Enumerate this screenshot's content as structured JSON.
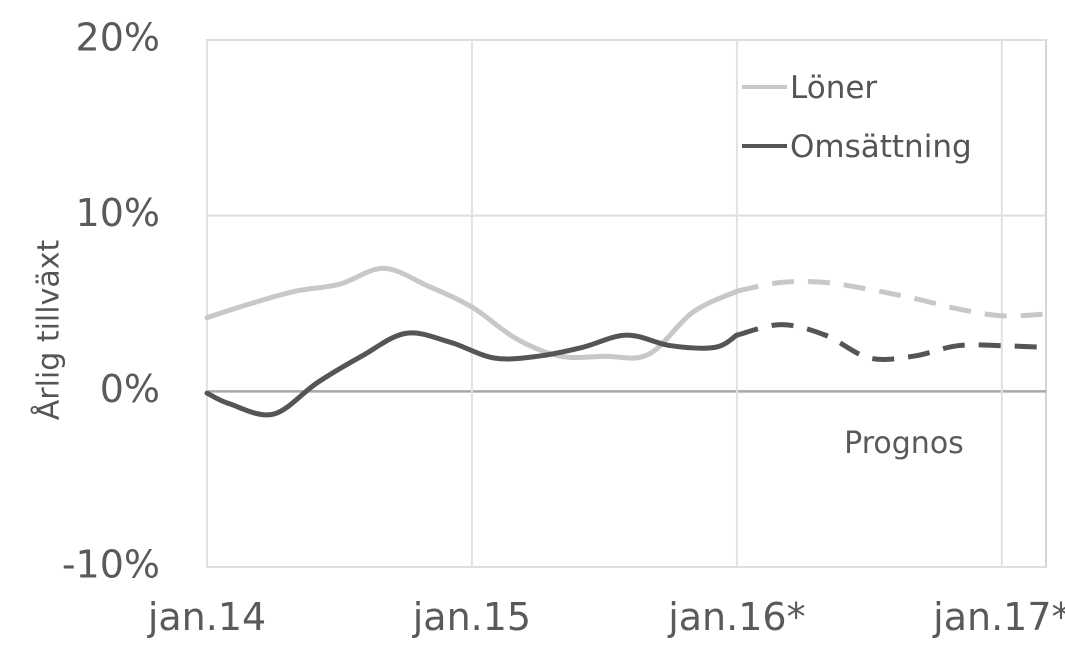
{
  "chart_data": {
    "type": "line",
    "ylabel": "Årlig tillväxt",
    "yticks": [
      {
        "value": 20,
        "label": "20%"
      },
      {
        "value": 10,
        "label": "10%"
      },
      {
        "value": 0,
        "label": "0%"
      },
      {
        "value": -10,
        "label": "-10%"
      }
    ],
    "ylim": [
      -10,
      20
    ],
    "x_ticks": [
      {
        "date": "2014-01",
        "label": "jan.14"
      },
      {
        "date": "2015-01",
        "label": "jan.15"
      },
      {
        "date": "2016-01",
        "label": "jan.16*"
      },
      {
        "date": "2017-01",
        "label": "jan.17*"
      }
    ],
    "xlim": [
      "2014-01",
      "2017-03"
    ],
    "grid": true,
    "legend_position": "top-right",
    "forecast_start": "2016-01",
    "annotation": "Prognos",
    "series": [
      {
        "name": "Löner",
        "color": "#c8c8c8",
        "points": [
          [
            "2014-01",
            4.2
          ],
          [
            "2014-03",
            5.0
          ],
          [
            "2014-05",
            5.7
          ],
          [
            "2014-07",
            6.1
          ],
          [
            "2014-09",
            7.0
          ],
          [
            "2014-11",
            6.0
          ],
          [
            "2015-01",
            4.8
          ],
          [
            "2015-03",
            3.0
          ],
          [
            "2015-05",
            2.0
          ],
          [
            "2015-07",
            2.0
          ],
          [
            "2015-09",
            2.1
          ],
          [
            "2015-11",
            4.5
          ],
          [
            "2016-01",
            5.7
          ],
          [
            "2016-03",
            6.2
          ],
          [
            "2016-05",
            6.2
          ],
          [
            "2016-07",
            5.8
          ],
          [
            "2016-09",
            5.3
          ],
          [
            "2016-11",
            4.7
          ],
          [
            "2017-01",
            4.3
          ],
          [
            "2017-03",
            4.4
          ]
        ]
      },
      {
        "name": "Omsättning",
        "color": "#555555",
        "points": [
          [
            "2014-01",
            -0.1
          ],
          [
            "2014-02",
            -0.7
          ],
          [
            "2014-04",
            -1.3
          ],
          [
            "2014-06",
            0.5
          ],
          [
            "2014-08",
            2.0
          ],
          [
            "2014-10",
            3.3
          ],
          [
            "2014-12",
            2.8
          ],
          [
            "2015-02",
            1.9
          ],
          [
            "2015-04",
            2.0
          ],
          [
            "2015-06",
            2.5
          ],
          [
            "2015-08",
            3.2
          ],
          [
            "2015-10",
            2.6
          ],
          [
            "2015-12",
            2.5
          ],
          [
            "2016-01",
            3.2
          ],
          [
            "2016-03",
            3.8
          ],
          [
            "2016-05",
            3.2
          ],
          [
            "2016-07",
            1.9
          ],
          [
            "2016-09",
            2.0
          ],
          [
            "2016-11",
            2.6
          ],
          [
            "2017-01",
            2.6
          ],
          [
            "2017-03",
            2.5
          ]
        ]
      }
    ]
  }
}
